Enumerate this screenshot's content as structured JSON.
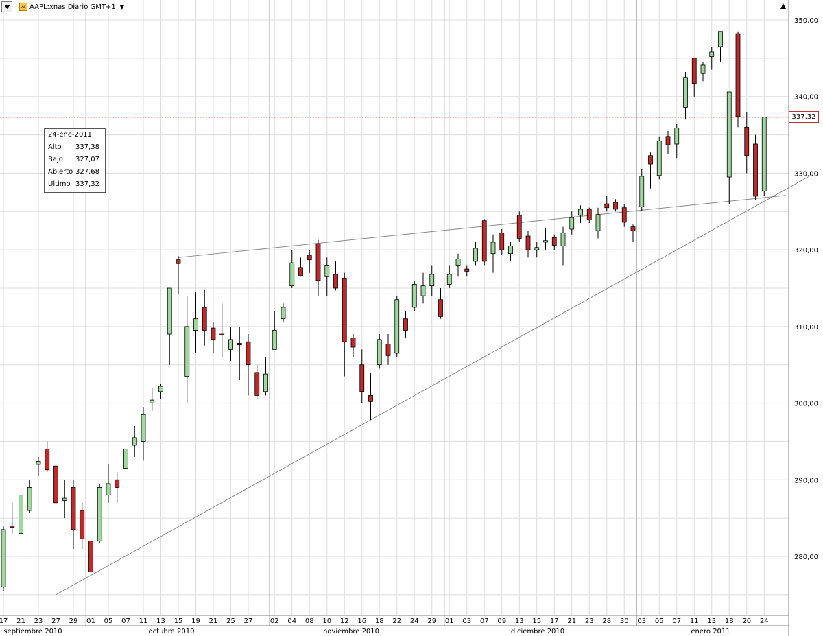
{
  "header": {
    "title": "AAPL:xnas Diario GMT+1",
    "menu_icon": "dropdown-triangle-icon",
    "symbol_icon": "instrument-icon",
    "caret_icon": "caret-down-icon",
    "pin_icon": "pin-icon"
  },
  "tooltip": {
    "date": "24-ene-2011",
    "rows": [
      {
        "label": "Alto",
        "value": "337,38"
      },
      {
        "label": "Bajo",
        "value": "327,07"
      },
      {
        "label": "Abierto",
        "value": "327,68"
      },
      {
        "label": "Último",
        "value": "337,32"
      }
    ]
  },
  "last_price_tag": "337,32",
  "colors": {
    "up": "#9fd89f",
    "down": "#c0282a",
    "grid": "#dcdcdc",
    "last_line": "#d02020",
    "trendline": "#aaaaaa"
  },
  "chart_data": {
    "type": "candlestick",
    "title": "AAPL:xnas Diario GMT+1",
    "ylim": [
      272,
      352
    ],
    "y_ticks": [
      "280,00",
      "290,00",
      "300,00",
      "310,00",
      "320,00",
      "330,00",
      "340,00",
      "350,00"
    ],
    "y_tick_values": [
      280,
      290,
      300,
      310,
      320,
      330,
      340,
      350
    ],
    "grid": true,
    "last_price": 337.32,
    "months": [
      "septiembre 2010",
      "octubre 2010",
      "noviembre 2010",
      "diciembre 2010",
      "enero 2011"
    ],
    "candles": [
      {
        "d": "17",
        "o": 276,
        "h": 284,
        "l": 275.5,
        "c": 283.5
      },
      {
        "d": "",
        "o": 284,
        "h": 287,
        "l": 283,
        "c": 283.8
      },
      {
        "d": "21",
        "o": 283,
        "h": 288.5,
        "l": 282.5,
        "c": 288
      },
      {
        "d": "",
        "o": 286,
        "h": 290,
        "l": 285.7,
        "c": 289
      },
      {
        "d": "23",
        "o": 292,
        "h": 293,
        "l": 290.5,
        "c": 292.4
      },
      {
        "d": "",
        "o": 294,
        "h": 295,
        "l": 291,
        "c": 291.3
      },
      {
        "d": "27",
        "o": 291.8,
        "h": 292,
        "l": 275,
        "c": 287
      },
      {
        "d": "",
        "o": 287.3,
        "h": 290,
        "l": 285,
        "c": 287.6
      },
      {
        "d": "29",
        "o": 289,
        "h": 290,
        "l": 281,
        "c": 283.5
      },
      {
        "d": "",
        "o": 286,
        "h": 287,
        "l": 281,
        "c": 282.3
      },
      {
        "d": "01",
        "o": 282,
        "h": 283,
        "l": 277.5,
        "c": 278
      },
      {
        "d": "",
        "o": 282,
        "h": 289.5,
        "l": 281.8,
        "c": 289
      },
      {
        "d": "05",
        "o": 288,
        "h": 292,
        "l": 287,
        "c": 289.5
      },
      {
        "d": "",
        "o": 290,
        "h": 291,
        "l": 287,
        "c": 289
      },
      {
        "d": "07",
        "o": 291.5,
        "h": 294,
        "l": 290,
        "c": 294
      },
      {
        "d": "",
        "o": 294.5,
        "h": 297,
        "l": 293,
        "c": 295.5
      },
      {
        "d": "11",
        "o": 295,
        "h": 299.5,
        "l": 292.5,
        "c": 298.5
      },
      {
        "d": "",
        "o": 300,
        "h": 302,
        "l": 299,
        "c": 300.4
      },
      {
        "d": "13",
        "o": 301.5,
        "h": 302.5,
        "l": 300.5,
        "c": 302.2
      },
      {
        "d": "",
        "o": 309,
        "h": 315,
        "l": 305,
        "c": 315
      },
      {
        "d": "15",
        "o": 318.7,
        "h": 319.2,
        "l": 314.3,
        "c": 318.2
      },
      {
        "d": "",
        "o": 303.5,
        "h": 314,
        "l": 300,
        "c": 310
      },
      {
        "d": "19",
        "o": 309.5,
        "h": 314.5,
        "l": 306.5,
        "c": 311
      },
      {
        "d": "",
        "o": 312.5,
        "h": 314.8,
        "l": 307.5,
        "c": 309.5
      },
      {
        "d": "21",
        "o": 309.8,
        "h": 310.5,
        "l": 306.5,
        "c": 308.3
      },
      {
        "d": "",
        "o": 309,
        "h": 313,
        "l": 306,
        "c": 308.9
      },
      {
        "d": "25",
        "o": 307,
        "h": 310,
        "l": 305.5,
        "c": 308.3
      },
      {
        "d": "",
        "o": 307.8,
        "h": 310,
        "l": 303,
        "c": 307.6
      },
      {
        "d": "27",
        "o": 308,
        "h": 309,
        "l": 301,
        "c": 305
      },
      {
        "d": "",
        "o": 304,
        "h": 305,
        "l": 300.5,
        "c": 301
      },
      {
        "d": "",
        "o": 301.5,
        "h": 306,
        "l": 301,
        "c": 303.8
      },
      {
        "d": "02",
        "o": 307,
        "h": 312,
        "l": 307,
        "c": 309.5
      },
      {
        "d": "",
        "o": 311,
        "h": 313,
        "l": 310.5,
        "c": 312.5
      },
      {
        "d": "04",
        "o": 315.3,
        "h": 320,
        "l": 315,
        "c": 318.3
      },
      {
        "d": "",
        "o": 317.7,
        "h": 319,
        "l": 316.5,
        "c": 316.6
      },
      {
        "d": "08",
        "o": 319.3,
        "h": 320,
        "l": 317,
        "c": 318.7
      },
      {
        "d": "",
        "o": 320.8,
        "h": 321.3,
        "l": 314,
        "c": 316
      },
      {
        "d": "10",
        "o": 316.5,
        "h": 319,
        "l": 314,
        "c": 318
      },
      {
        "d": "",
        "o": 316.8,
        "h": 318.5,
        "l": 314.7,
        "c": 315
      },
      {
        "d": "12",
        "o": 316.3,
        "h": 317,
        "l": 303.5,
        "c": 308
      },
      {
        "d": "",
        "o": 308.5,
        "h": 309,
        "l": 306,
        "c": 307.3
      },
      {
        "d": "16",
        "o": 305,
        "h": 307,
        "l": 300,
        "c": 301.5
      },
      {
        "d": "",
        "o": 301,
        "h": 304,
        "l": 297.8,
        "c": 300.2
      },
      {
        "d": "18",
        "o": 305,
        "h": 309,
        "l": 304.5,
        "c": 308.3
      },
      {
        "d": "",
        "o": 307.7,
        "h": 309,
        "l": 305,
        "c": 306.2
      },
      {
        "d": "22",
        "o": 306.5,
        "h": 314,
        "l": 306,
        "c": 313.5
      },
      {
        "d": "",
        "o": 311,
        "h": 312,
        "l": 308.5,
        "c": 309.5
      },
      {
        "d": "24",
        "o": 312.5,
        "h": 316,
        "l": 312,
        "c": 315.5
      },
      {
        "d": "",
        "o": 314,
        "h": 317,
        "l": 313,
        "c": 315.3
      },
      {
        "d": "29",
        "o": 315.3,
        "h": 318,
        "l": 314,
        "c": 316.8
      },
      {
        "d": "",
        "o": 313.5,
        "h": 315,
        "l": 311,
        "c": 311.3
      },
      {
        "d": "01",
        "o": 315.5,
        "h": 318,
        "l": 315,
        "c": 316.8
      },
      {
        "d": "",
        "o": 318,
        "h": 319.5,
        "l": 316.5,
        "c": 318.8
      },
      {
        "d": "03",
        "o": 317.5,
        "h": 318,
        "l": 316.5,
        "c": 317.2
      },
      {
        "d": "",
        "o": 318.5,
        "h": 321,
        "l": 318,
        "c": 320.2
      },
      {
        "d": "07",
        "o": 323.8,
        "h": 324,
        "l": 318,
        "c": 318.5
      },
      {
        "d": "",
        "o": 319.5,
        "h": 322,
        "l": 317,
        "c": 321
      },
      {
        "d": "09",
        "o": 322.2,
        "h": 322.7,
        "l": 319.3,
        "c": 320
      },
      {
        "d": "",
        "o": 319.5,
        "h": 321,
        "l": 318.5,
        "c": 320.5
      },
      {
        "d": "13",
        "o": 324.5,
        "h": 325,
        "l": 321,
        "c": 321.5
      },
      {
        "d": "",
        "o": 321.8,
        "h": 322.5,
        "l": 319,
        "c": 320
      },
      {
        "d": "15",
        "o": 320,
        "h": 321,
        "l": 319,
        "c": 320.3
      },
      {
        "d": "",
        "o": 321,
        "h": 322.8,
        "l": 320,
        "c": 321.2
      },
      {
        "d": "17",
        "o": 321.6,
        "h": 322,
        "l": 320,
        "c": 320.6
      },
      {
        "d": "",
        "o": 320.5,
        "h": 323,
        "l": 318,
        "c": 322.2
      },
      {
        "d": "21",
        "o": 322.7,
        "h": 325,
        "l": 322,
        "c": 324.2
      },
      {
        "d": "",
        "o": 324.5,
        "h": 325.8,
        "l": 323.5,
        "c": 325.3
      },
      {
        "d": "23",
        "o": 325.3,
        "h": 325.5,
        "l": 323.5,
        "c": 323.9
      },
      {
        "d": "",
        "o": 322.5,
        "h": 325.5,
        "l": 321.5,
        "c": 324.6
      },
      {
        "d": "28",
        "o": 326,
        "h": 327,
        "l": 325,
        "c": 325.5
      },
      {
        "d": "",
        "o": 326.2,
        "h": 326.6,
        "l": 325,
        "c": 325.3
      },
      {
        "d": "30",
        "o": 325.5,
        "h": 326,
        "l": 323,
        "c": 323.6
      },
      {
        "d": "",
        "o": 323,
        "h": 323.3,
        "l": 321,
        "c": 322.5
      },
      {
        "d": "03",
        "o": 325.6,
        "h": 330.5,
        "l": 325.1,
        "c": 329.6
      },
      {
        "d": "",
        "o": 332.3,
        "h": 332.7,
        "l": 328,
        "c": 331.2
      },
      {
        "d": "05",
        "o": 329.7,
        "h": 334.8,
        "l": 329.2,
        "c": 334.2
      },
      {
        "d": "",
        "o": 334.8,
        "h": 335.5,
        "l": 332.5,
        "c": 333.7
      },
      {
        "d": "07",
        "o": 333.8,
        "h": 336.4,
        "l": 331.9,
        "c": 335.9
      },
      {
        "d": "",
        "o": 338.6,
        "h": 343.2,
        "l": 337,
        "c": 342.5
      },
      {
        "d": "11",
        "o": 345,
        "h": 345,
        "l": 340,
        "c": 341.7
      },
      {
        "d": "",
        "o": 343,
        "h": 344.5,
        "l": 342,
        "c": 344.1
      },
      {
        "d": "13",
        "o": 345.2,
        "h": 346.5,
        "l": 343.5,
        "c": 345.8
      },
      {
        "d": "",
        "o": 346.5,
        "h": 348.5,
        "l": 344.5,
        "c": 348.5
      },
      {
        "d": "18",
        "o": 329.5,
        "h": 340.6,
        "l": 326,
        "c": 340.6
      },
      {
        "d": "",
        "o": 348.2,
        "h": 348.5,
        "l": 336,
        "c": 337.4
      },
      {
        "d": "20",
        "o": 336,
        "h": 338,
        "l": 330,
        "c": 332.3
      },
      {
        "d": "",
        "o": 333.8,
        "h": 335,
        "l": 326.5,
        "c": 327
      },
      {
        "d": "24",
        "o": 327.68,
        "h": 337.38,
        "l": 327.07,
        "c": 337.32
      }
    ],
    "trendlines": [
      {
        "from": {
          "i": 6,
          "y": 275
        },
        "to": {
          "i": 92,
          "y": 329.5
        }
      },
      {
        "from": {
          "i": 20,
          "y": 319
        },
        "to": {
          "i": 89.5,
          "y": 327.1
        }
      }
    ]
  }
}
